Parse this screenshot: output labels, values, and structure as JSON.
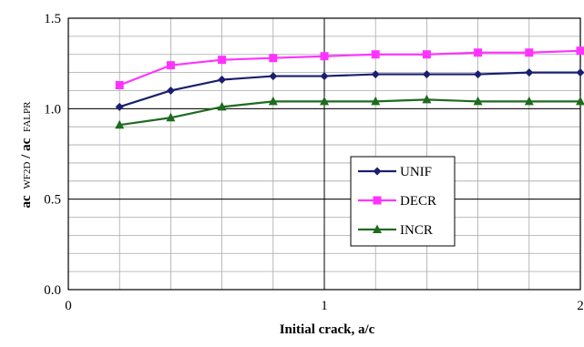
{
  "chart_data": {
    "type": "line",
    "title": "",
    "xlabel": "Initial crack, a/c",
    "ylabel": {
      "main": "ac",
      "sub1": "WF2D",
      "slash": "/ ",
      "main2": "ac",
      "sub2": "FALPR"
    },
    "xlim": [
      0,
      2
    ],
    "ylim": [
      0,
      1.5
    ],
    "x_ticks": [
      {
        "value": 0,
        "label": "0"
      },
      {
        "value": 1,
        "label": "1"
      },
      {
        "value": 2,
        "label": "2"
      }
    ],
    "y_ticks": [
      {
        "value": 0.0,
        "label": "0.0"
      },
      {
        "value": 0.5,
        "label": "0.5"
      },
      {
        "value": 1.0,
        "label": "1.0"
      },
      {
        "value": 1.5,
        "label": "1.5"
      }
    ],
    "grid": "on",
    "legend_position": "center-right",
    "x": [
      0.2,
      0.4,
      0.6,
      0.8,
      1.0,
      1.2,
      1.4,
      1.6,
      1.8,
      2.0
    ],
    "series": [
      {
        "name": "UNIF",
        "color": "#1a1f6e",
        "marker": "diamond",
        "values": [
          1.01,
          1.1,
          1.16,
          1.18,
          1.18,
          1.19,
          1.19,
          1.19,
          1.2,
          1.2
        ]
      },
      {
        "name": "DECR",
        "color": "#ff33ff",
        "marker": "square",
        "values": [
          1.13,
          1.24,
          1.27,
          1.28,
          1.29,
          1.3,
          1.3,
          1.31,
          1.31,
          1.32
        ]
      },
      {
        "name": "INCR",
        "color": "#1f6b1f",
        "marker": "triangle",
        "values": [
          0.91,
          0.95,
          1.01,
          1.04,
          1.04,
          1.04,
          1.05,
          1.04,
          1.04,
          1.04
        ]
      }
    ]
  }
}
